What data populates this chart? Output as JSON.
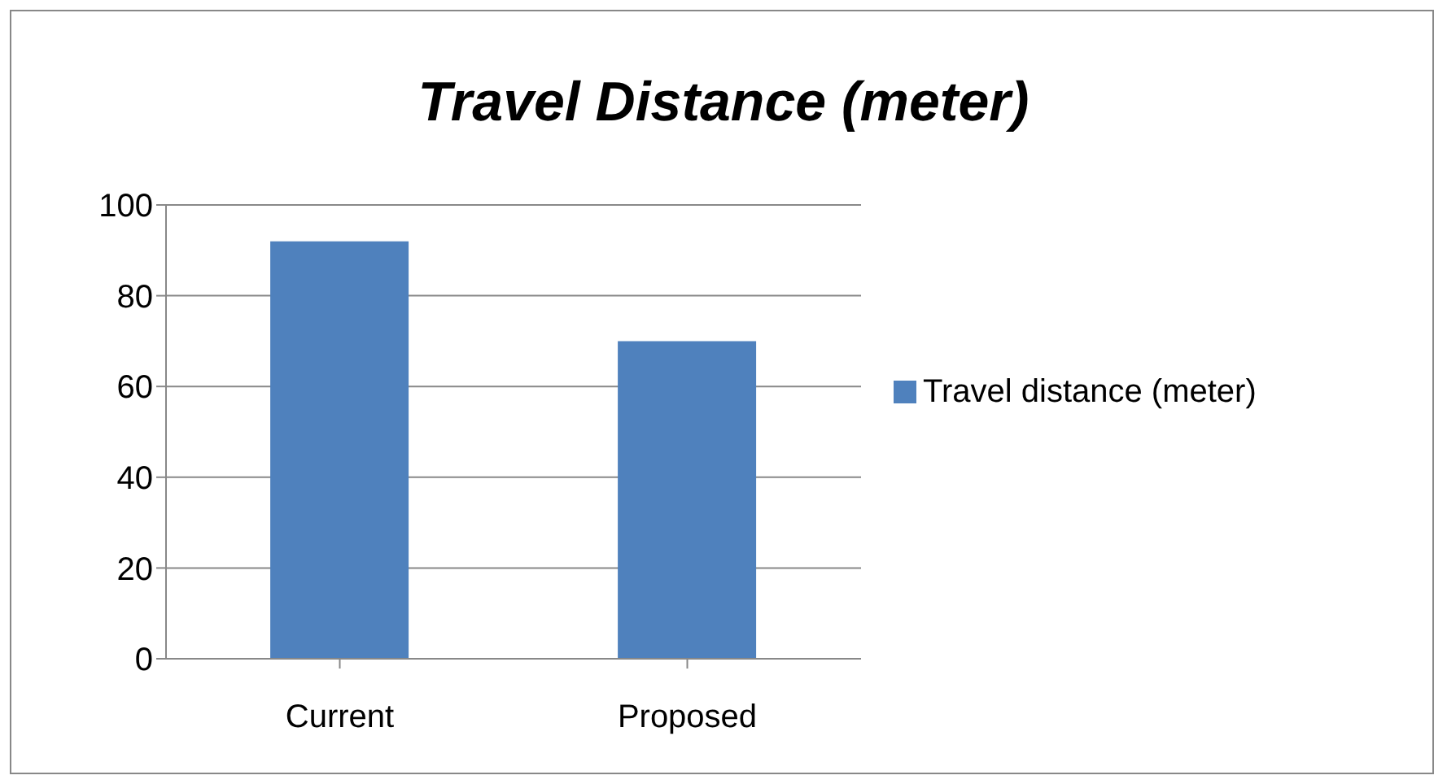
{
  "chart_data": {
    "type": "bar",
    "title": "Travel Distance (meter)",
    "categories": [
      "Current",
      "Proposed"
    ],
    "series": [
      {
        "name": "Travel distance (meter)",
        "color": "#4f81bd",
        "values": [
          92,
          70
        ]
      }
    ],
    "ylim": [
      0,
      100
    ],
    "yticks": [
      0,
      20,
      40,
      60,
      80,
      100
    ],
    "grid": "y",
    "legend": "right"
  }
}
